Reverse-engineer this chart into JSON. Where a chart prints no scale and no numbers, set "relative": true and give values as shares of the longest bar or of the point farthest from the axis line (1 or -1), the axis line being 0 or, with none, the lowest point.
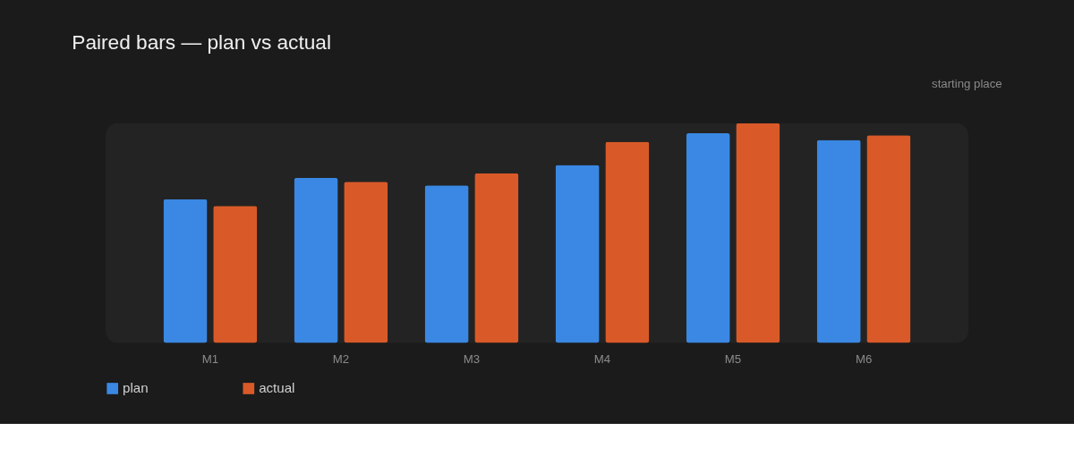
{
  "chart_data": {
    "type": "bar",
    "title": "Paired bars — plan vs actual",
    "annotations": [
      "starting place"
    ],
    "relative": true,
    "categories": [
      "M1",
      "M2",
      "M3",
      "M4",
      "M5",
      "M6"
    ],
    "series": [
      {
        "name": "plan",
        "color": "#3a88e3",
        "values": [
          0.654,
          0.751,
          0.717,
          0.81,
          0.954,
          0.924
        ]
      },
      {
        "name": "actual",
        "color": "#d95a28",
        "values": [
          0.624,
          0.734,
          0.772,
          0.916,
          1.0,
          0.945
        ]
      }
    ],
    "legend": "bottom left",
    "grid": false
  }
}
